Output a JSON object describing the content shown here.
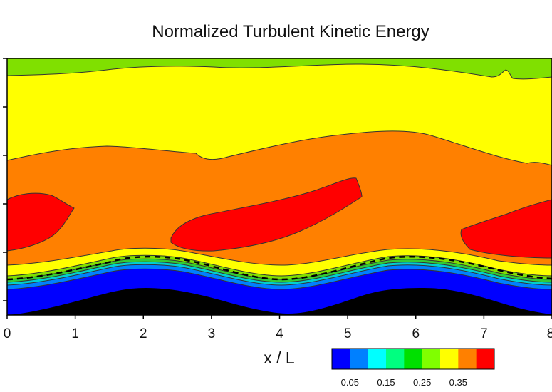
{
  "chart_data": {
    "type": "heatmap",
    "title": "Normalized Turbulent Kinetic Energy",
    "xlabel": "x / L",
    "ylabel": "",
    "x_ticks": [
      0,
      1,
      2,
      3,
      4,
      5,
      6,
      7,
      8
    ],
    "xlim": [
      0,
      8
    ],
    "colorbar": {
      "levels": [
        0.05,
        0.1,
        0.15,
        0.2,
        0.25,
        0.3,
        0.35,
        0.4
      ],
      "labels": [
        "0.05",
        "0.15",
        "0.25",
        "0.35"
      ],
      "label_values": [
        0.05,
        0.15,
        0.25,
        0.35
      ],
      "colors": [
        "#0000ff",
        "#0080ff",
        "#00ffff",
        "#00ff80",
        "#00e000",
        "#80ff00",
        "#ffff00",
        "#ff8000",
        "#ff0000"
      ]
    },
    "colors": {
      "wall": "#000000",
      "low": "#0000ff",
      "mid_low": "#0080ff",
      "cyan": "#00ffff",
      "green": "#33cc33",
      "light_green": "#80e000",
      "yellow": "#ffff00",
      "orange": "#ff8000",
      "red": "#ff0000",
      "dashed_line": "#000000"
    }
  }
}
